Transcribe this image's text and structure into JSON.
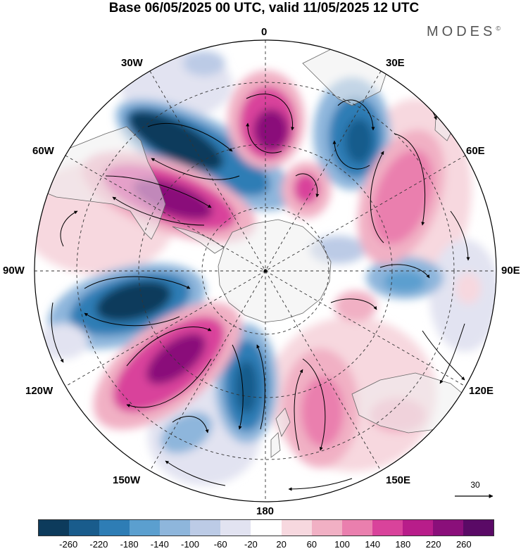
{
  "title": "Base 06/05/2025 00 UTC, valid 11/05/2025 12 UTC",
  "brand": "MODES",
  "brand_mark": "©",
  "longitude_labels": {
    "north": "0",
    "e30": "30E",
    "e60": "60E",
    "e90": "90E",
    "e120": "120E",
    "e150": "150E",
    "south": "180",
    "w150": "150W",
    "w120": "120W",
    "w90": "90W",
    "w60": "60W",
    "w30": "30W"
  },
  "reference_vector": "30",
  "colorbar": {
    "colors": [
      "#0d3b5c",
      "#195c8c",
      "#2e7db5",
      "#5b9fcf",
      "#8eb6dc",
      "#bccbe6",
      "#e2e3f1",
      "#ffffff",
      "#f7d8df",
      "#f1b0c4",
      "#ea7fae",
      "#d9439b",
      "#b81d8a",
      "#8a0f7a",
      "#5a0a66"
    ],
    "ticks": [
      "-260",
      "-220",
      "-180",
      "-140",
      "-100",
      "-60",
      "-20",
      "20",
      "60",
      "100",
      "140",
      "180",
      "220",
      "260"
    ]
  },
  "projection": "polar stereographic, South Pole centered",
  "grid": true
}
